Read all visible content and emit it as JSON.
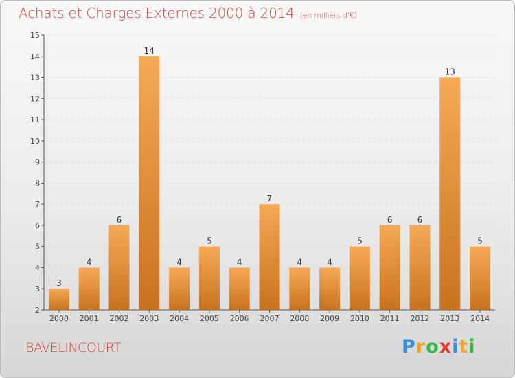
{
  "header": {
    "title": "Achats et Charges Externes 2000 à 2014",
    "unit": "(en milliers d'€)"
  },
  "footer": {
    "commune": "BAVELINCOURT",
    "logo_letters": [
      "P",
      "r",
      "o",
      "x",
      "i",
      "t",
      "i"
    ],
    "logo_colors": [
      "#3a8fd6",
      "#f2a324",
      "#3ab54a",
      "#e8372e",
      "#3a8fd6",
      "#f2a324",
      "#3ab54a"
    ]
  },
  "colors": {
    "title": "#d2463b",
    "bar_light": "#f7a955",
    "bar_dark": "#c8721f",
    "axis": "#555555",
    "grid": "#cccccc"
  },
  "chart_data": {
    "type": "bar",
    "title": "Achats et Charges Externes 2000 à 2014",
    "categories": [
      "2000",
      "2001",
      "2002",
      "2003",
      "2004",
      "2005",
      "2006",
      "2007",
      "2008",
      "2009",
      "2010",
      "2011",
      "2012",
      "2013",
      "2014"
    ],
    "values": [
      3,
      4,
      6,
      14,
      4,
      5,
      4,
      7,
      4,
      4,
      5,
      6,
      6,
      13,
      5
    ],
    "ylim": [
      2,
      15
    ],
    "yticks": [
      2,
      3,
      4,
      5,
      6,
      7,
      8,
      9,
      10,
      11,
      12,
      13,
      14,
      15
    ],
    "grid": true,
    "data_labels": true
  }
}
